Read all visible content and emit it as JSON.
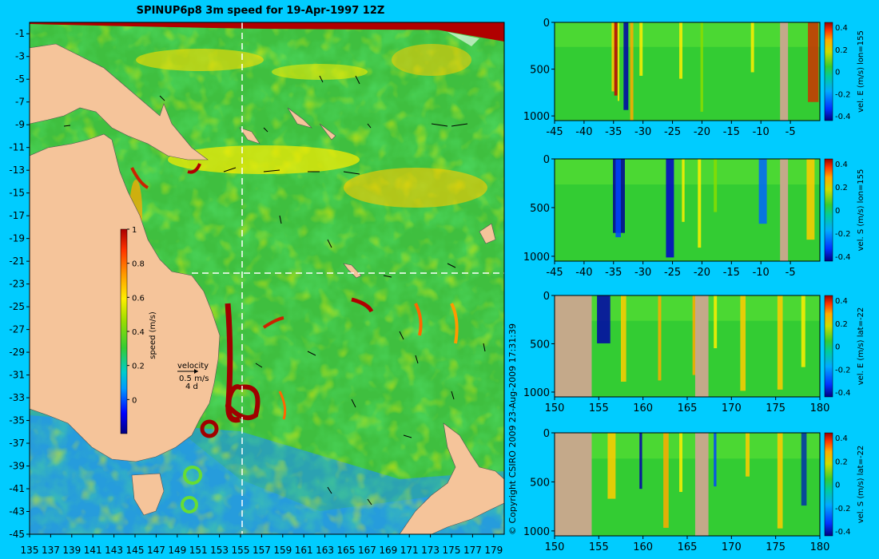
{
  "colors": {
    "background": "#00ccff",
    "land": "#f5c49a",
    "mask": "#c4a98a",
    "ocean_mid": "#3fbf3f",
    "ocean_low": "#1e90ff",
    "fast": "#c00000",
    "colormap": [
      "#000080",
      "#0000ff",
      "#0099ff",
      "#00cccc",
      "#33cc33",
      "#99dd00",
      "#ffee00",
      "#ff9900",
      "#ff3300",
      "#aa0000"
    ]
  },
  "map": {
    "title": "SPINUP6p8 3m speed for 19-Apr-1997 12Z",
    "lon_ticks": [
      "135",
      "137",
      "139",
      "141",
      "143",
      "145",
      "147",
      "149",
      "151",
      "153",
      "155",
      "157",
      "159",
      "161",
      "163",
      "165",
      "167",
      "169",
      "171",
      "173",
      "175",
      "177",
      "179"
    ],
    "lat_ticks": [
      "-1",
      "-3",
      "-5",
      "-7",
      "-9",
      "-11",
      "-13",
      "-15",
      "-17",
      "-19",
      "-21",
      "-23",
      "-25",
      "-27",
      "-29",
      "-31",
      "-33",
      "-35",
      "-37",
      "-39",
      "-41",
      "-43",
      "-45"
    ],
    "colorbar_label": "speed (m/s)",
    "colorbar_ticks": [
      "0",
      "0.2",
      "0.4",
      "0.6",
      "0.8",
      "1"
    ],
    "velocity_key": {
      "title": "velocity",
      "value": "0.5 m/s",
      "period": "4 d"
    },
    "copyright": "© Copyright CSIRO 2009   23-Aug-2009 17:31:39"
  },
  "chart_data": [
    {
      "type": "heatmap",
      "title": "SPINUP6p8 3m speed for 19-Apr-1997 12Z",
      "x_ticks": [
        135,
        137,
        139,
        141,
        143,
        145,
        147,
        149,
        151,
        153,
        155,
        157,
        159,
        161,
        163,
        165,
        167,
        169,
        171,
        173,
        175,
        177,
        179
      ],
      "y_ticks": [
        -1,
        -3,
        -5,
        -7,
        -9,
        -11,
        -13,
        -15,
        -17,
        -19,
        -21,
        -23,
        -25,
        -27,
        -29,
        -31,
        -33,
        -35,
        -37,
        -39,
        -41,
        -43,
        -45
      ],
      "xlim": [
        135,
        180
      ],
      "ylim": [
        -45,
        0
      ],
      "crosshair": {
        "lon": 155,
        "lat": -22
      },
      "colorbar": {
        "label": "speed (m/s)",
        "ticks": [
          0,
          0.2,
          0.4,
          0.6,
          0.8,
          1
        ],
        "range": [
          -0.2,
          1
        ]
      }
    },
    {
      "type": "heatmap",
      "label": "vel. E (m/s) lon=155",
      "x_ticks": [
        -45,
        -40,
        -35,
        -30,
        -25,
        -20,
        -15,
        -10,
        -5
      ],
      "y_ticks": [
        0,
        500,
        1000
      ],
      "xlim": [
        -45,
        0
      ],
      "ylim": [
        1050,
        0
      ],
      "colorbar_ticks": [
        0.4,
        0.2,
        0,
        -0.2,
        -0.4
      ]
    },
    {
      "type": "heatmap",
      "label": "vel. S (m/s) lon=155",
      "x_ticks": [
        -45,
        -40,
        -35,
        -30,
        -25,
        -20,
        -15,
        -10,
        -5
      ],
      "y_ticks": [
        0,
        500,
        1000
      ],
      "xlim": [
        -45,
        0
      ],
      "ylim": [
        1050,
        0
      ],
      "colorbar_ticks": [
        0.4,
        0.2,
        0,
        -0.2,
        -0.4
      ]
    },
    {
      "type": "heatmap",
      "label": "vel. E (m/s) lat=-22",
      "x_ticks": [
        150,
        155,
        160,
        165,
        170,
        175,
        180
      ],
      "y_ticks": [
        0,
        500,
        1000
      ],
      "xlim": [
        150,
        180
      ],
      "ylim": [
        1050,
        0
      ],
      "colorbar_ticks": [
        0.4,
        0.2,
        0,
        -0.2,
        -0.4
      ]
    },
    {
      "type": "heatmap",
      "label": "vel. S (m/s) lat=-22",
      "x_ticks": [
        150,
        155,
        160,
        165,
        170,
        175,
        180
      ],
      "y_ticks": [
        0,
        500,
        1000
      ],
      "xlim": [
        150,
        180
      ],
      "ylim": [
        1050,
        0
      ],
      "colorbar_ticks": [
        0.4,
        0.2,
        0,
        -0.2,
        -0.4
      ]
    }
  ]
}
